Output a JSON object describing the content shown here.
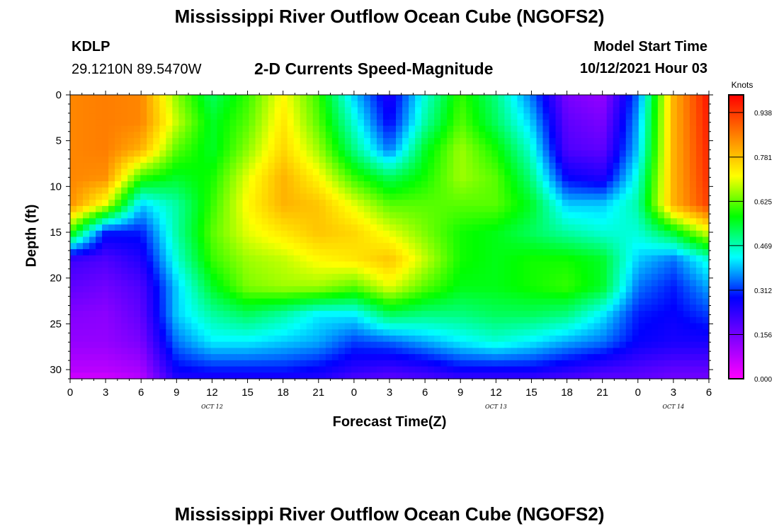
{
  "title_top": "Mississippi River Outflow Ocean Cube (NGOFS2)",
  "title_bottom": "Mississippi River Outflow Ocean Cube (NGOFS2)",
  "station": {
    "id": "KDLP",
    "coords": "29.1210N  89.5470W"
  },
  "model": {
    "label": "Model Start Time",
    "value": "10/12/2021 Hour 03"
  },
  "chart_data": {
    "type": "heatmap",
    "title": "2-D Currents Speed-Magnitude",
    "xlabel": "Forecast Time(Z)",
    "ylabel": "Depth (ft)",
    "x_tick_labels": [
      "0",
      "3",
      "6",
      "9",
      "12",
      "15",
      "18",
      "21",
      "0",
      "3",
      "6",
      "9",
      "12",
      "15",
      "18",
      "21",
      "0",
      "3",
      "6"
    ],
    "x_tick_hours": [
      0,
      3,
      6,
      9,
      12,
      15,
      18,
      21,
      24,
      27,
      30,
      33,
      36,
      39,
      42,
      45,
      48,
      51,
      54
    ],
    "x_range_hours": [
      0,
      54
    ],
    "date_labels": [
      {
        "text": "OCT 12",
        "hour": 12
      },
      {
        "text": "OCT 13",
        "hour": 36
      },
      {
        "text": "OCT 14",
        "hour": 51
      }
    ],
    "y_tick_labels": [
      "0",
      "5",
      "10",
      "15",
      "20",
      "25",
      "30"
    ],
    "y_ticks": [
      0,
      5,
      10,
      15,
      20,
      25,
      30
    ],
    "ylim": [
      0,
      31
    ],
    "y_inverted": true,
    "colorbar": {
      "label": "Knots",
      "tick_labels": [
        "0.000",
        "0.156",
        "0.312",
        "0.469",
        "0.625",
        "0.781",
        "0.938"
      ],
      "ticks": [
        0.0,
        0.156,
        0.312,
        0.469,
        0.625,
        0.781,
        0.938
      ],
      "range": [
        0,
        1.0
      ],
      "colors": [
        "#ff00ff",
        "#8000ff",
        "#0000ff",
        "#00ffff",
        "#00ff00",
        "#ffff00",
        "#ff8000",
        "#ff0000"
      ]
    },
    "x_hours": [
      0,
      3,
      6,
      9,
      12,
      15,
      18,
      21,
      24,
      27,
      30,
      33,
      36,
      39,
      42,
      45,
      48,
      51,
      54
    ],
    "depths_ft": [
      0,
      3,
      6,
      9,
      12,
      15,
      18,
      21,
      24,
      27,
      30,
      31
    ],
    "values": [
      [
        0.85,
        0.86,
        0.85,
        0.65,
        0.52,
        0.6,
        0.72,
        0.6,
        0.4,
        0.25,
        0.45,
        0.6,
        0.5,
        0.35,
        0.15,
        0.12,
        0.35,
        0.8,
        0.98
      ],
      [
        0.85,
        0.86,
        0.85,
        0.68,
        0.55,
        0.62,
        0.74,
        0.62,
        0.45,
        0.28,
        0.48,
        0.62,
        0.52,
        0.4,
        0.18,
        0.15,
        0.38,
        0.8,
        0.97
      ],
      [
        0.85,
        0.86,
        0.8,
        0.62,
        0.55,
        0.65,
        0.76,
        0.66,
        0.5,
        0.35,
        0.55,
        0.66,
        0.58,
        0.45,
        0.2,
        0.18,
        0.4,
        0.8,
        0.96
      ],
      [
        0.85,
        0.84,
        0.6,
        0.55,
        0.58,
        0.7,
        0.8,
        0.72,
        0.6,
        0.52,
        0.58,
        0.66,
        0.62,
        0.5,
        0.28,
        0.25,
        0.45,
        0.8,
        0.95
      ],
      [
        0.84,
        0.7,
        0.4,
        0.48,
        0.6,
        0.72,
        0.8,
        0.78,
        0.7,
        0.62,
        0.62,
        0.62,
        0.62,
        0.55,
        0.4,
        0.4,
        0.48,
        0.8,
        0.93
      ],
      [
        0.6,
        0.3,
        0.3,
        0.48,
        0.62,
        0.7,
        0.74,
        0.78,
        0.76,
        0.7,
        0.64,
        0.58,
        0.56,
        0.52,
        0.48,
        0.45,
        0.45,
        0.55,
        0.7
      ],
      [
        0.22,
        0.2,
        0.25,
        0.45,
        0.6,
        0.66,
        0.68,
        0.72,
        0.74,
        0.78,
        0.68,
        0.58,
        0.56,
        0.58,
        0.58,
        0.55,
        0.4,
        0.35,
        0.45
      ],
      [
        0.18,
        0.16,
        0.2,
        0.4,
        0.55,
        0.64,
        0.66,
        0.66,
        0.62,
        0.7,
        0.62,
        0.56,
        0.56,
        0.58,
        0.6,
        0.55,
        0.35,
        0.3,
        0.38
      ],
      [
        0.14,
        0.13,
        0.18,
        0.4,
        0.48,
        0.52,
        0.48,
        0.42,
        0.42,
        0.52,
        0.5,
        0.5,
        0.52,
        0.52,
        0.5,
        0.42,
        0.3,
        0.28,
        0.32
      ],
      [
        0.12,
        0.12,
        0.15,
        0.35,
        0.42,
        0.42,
        0.4,
        0.38,
        0.32,
        0.34,
        0.38,
        0.42,
        0.45,
        0.42,
        0.38,
        0.35,
        0.28,
        0.26,
        0.26
      ],
      [
        0.08,
        0.08,
        0.1,
        0.28,
        0.3,
        0.3,
        0.3,
        0.28,
        0.24,
        0.22,
        0.24,
        0.28,
        0.28,
        0.28,
        0.25,
        0.22,
        0.2,
        0.18,
        0.18
      ],
      [
        0.05,
        0.05,
        0.08,
        0.25,
        0.25,
        0.25,
        0.25,
        0.25,
        0.2,
        0.18,
        0.2,
        0.22,
        0.22,
        0.22,
        0.2,
        0.18,
        0.18,
        0.16,
        0.16
      ]
    ],
    "grid": false
  }
}
